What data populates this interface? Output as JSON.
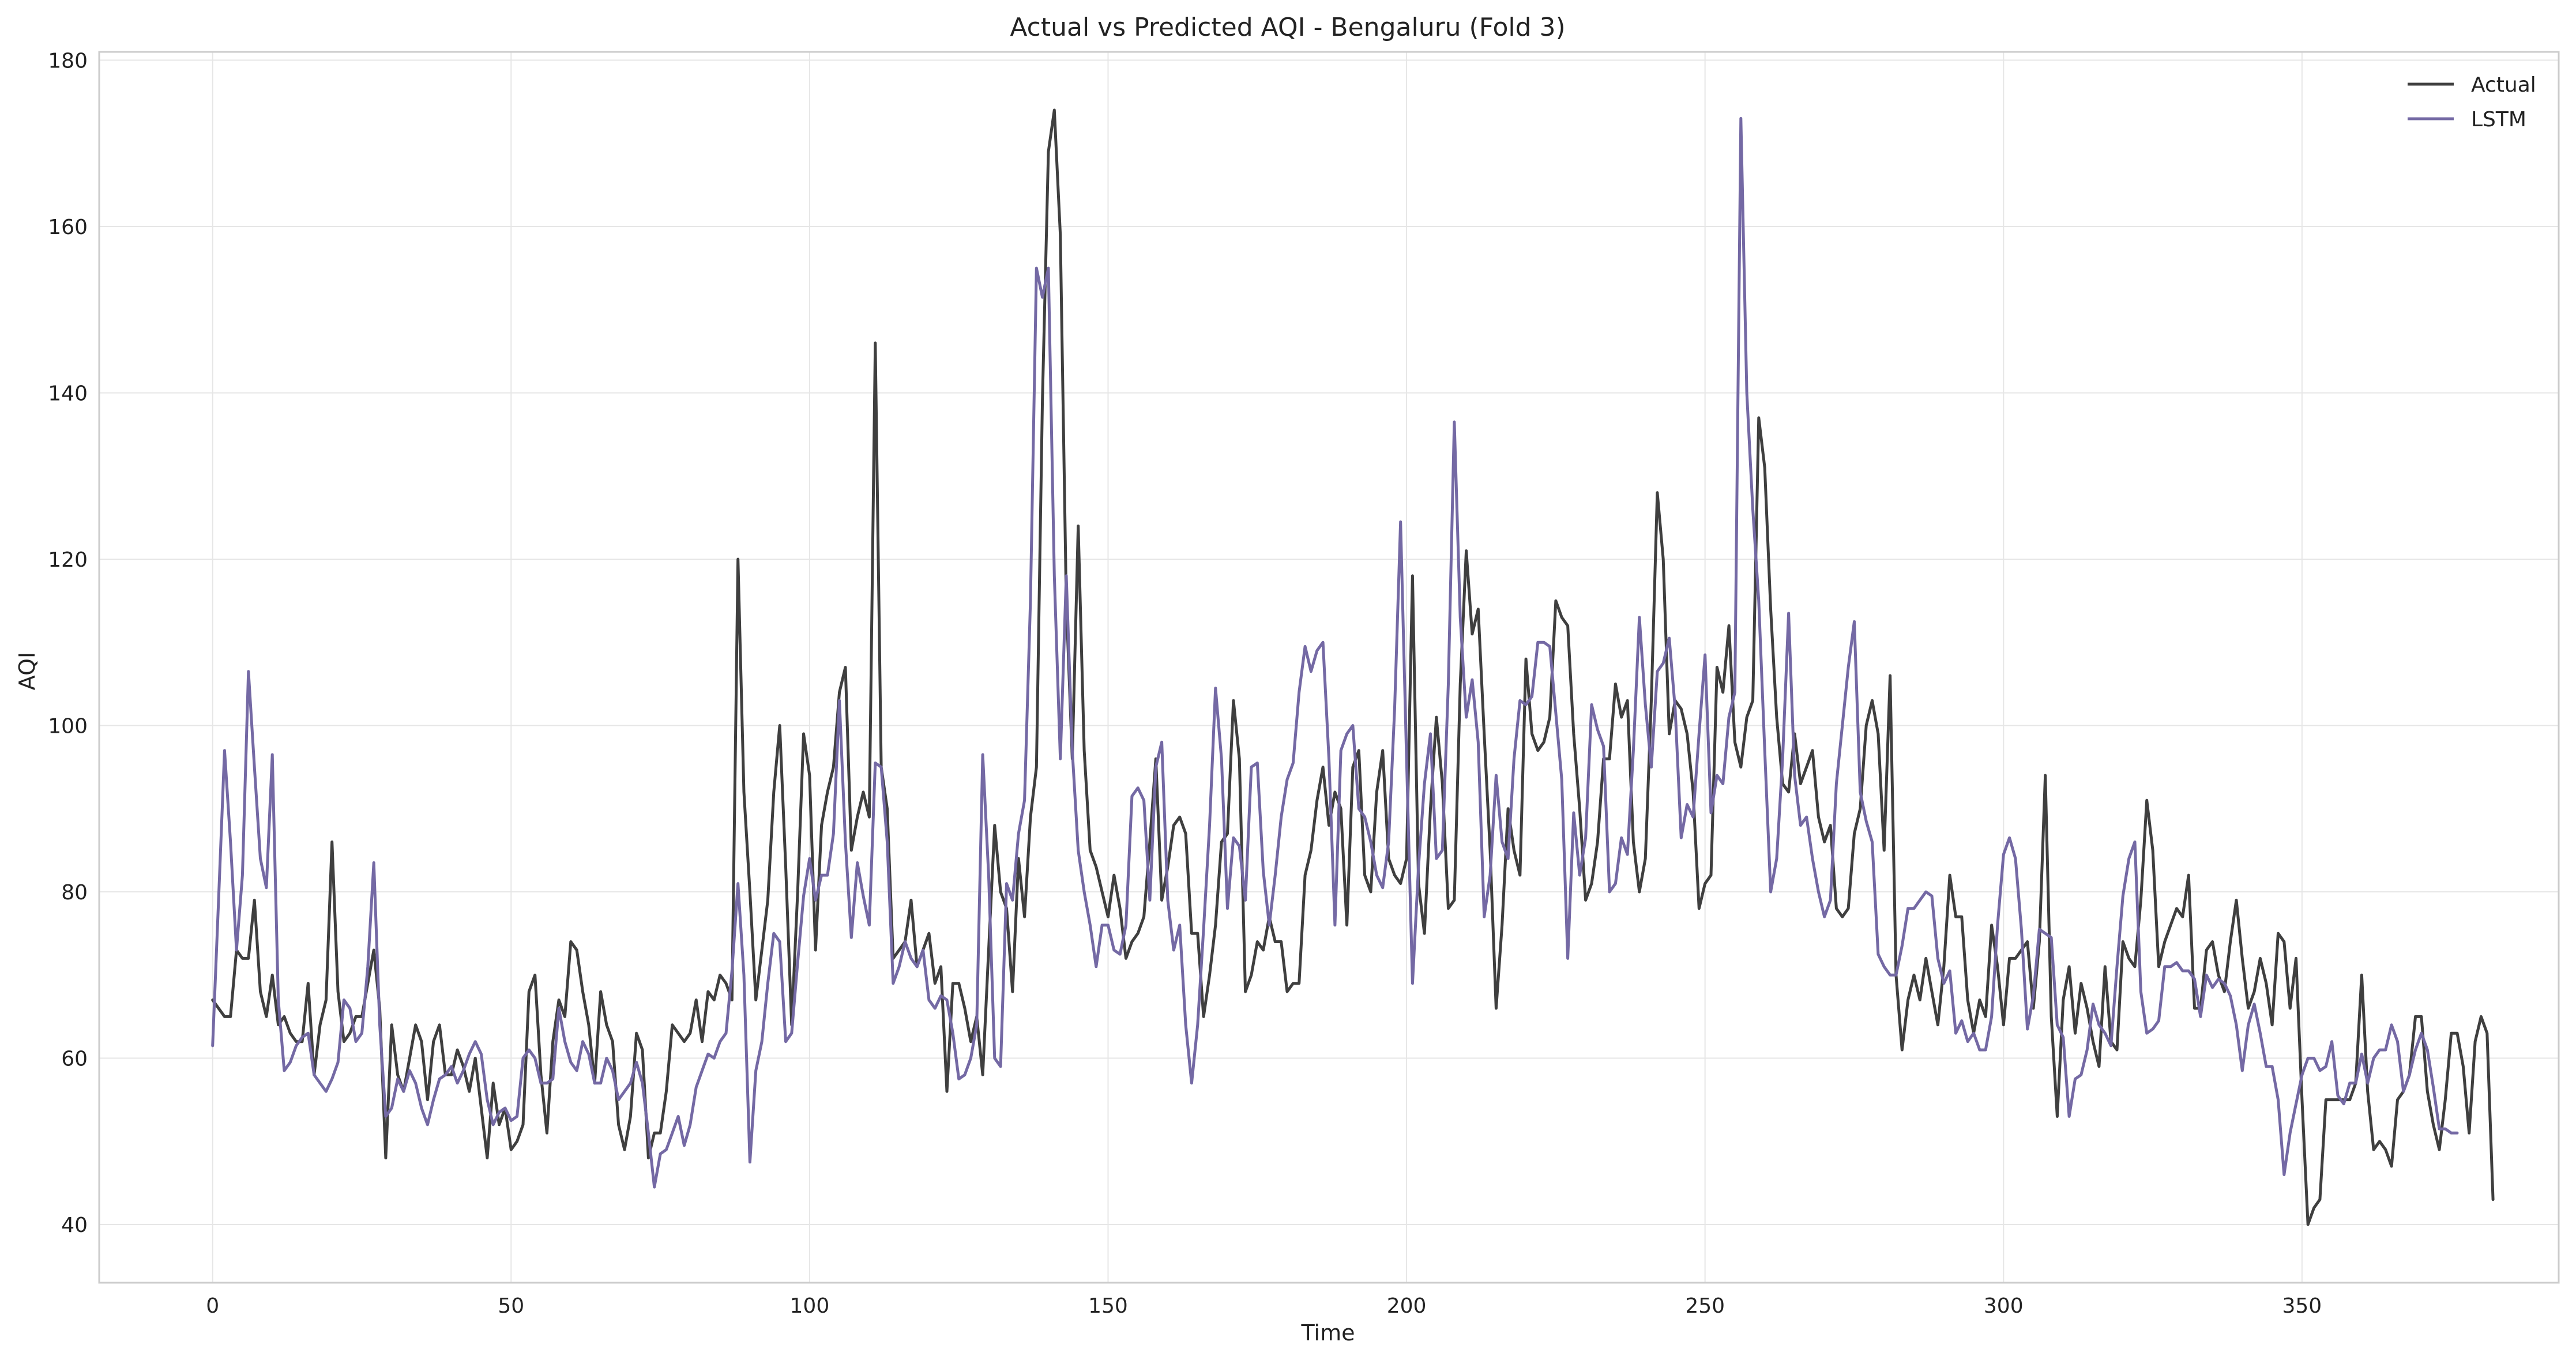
{
  "chart_data": {
    "type": "line",
    "title": "Actual vs Predicted AQI - Bengaluru (Fold 3)",
    "xlabel": "Time",
    "ylabel": "AQI",
    "xlim": [
      -19,
      393
    ],
    "ylim": [
      33,
      181
    ],
    "xticks": [
      0,
      50,
      100,
      150,
      200,
      250,
      300,
      350
    ],
    "yticks": [
      40,
      60,
      80,
      100,
      120,
      140,
      160,
      180
    ],
    "grid": true,
    "legend": "top-right",
    "series": [
      {
        "name": "Actual",
        "color": "#3f3f3f",
        "values": [
          67,
          66,
          65,
          65,
          73,
          72,
          72,
          79,
          68,
          65,
          70,
          64,
          65,
          63,
          62,
          62,
          69,
          58,
          64,
          67,
          86,
          68,
          62,
          63,
          65,
          65,
          69,
          73,
          66,
          48,
          64,
          58,
          56,
          60,
          64,
          62,
          55,
          62,
          64,
          58,
          58,
          61,
          59,
          56,
          60,
          54,
          48,
          57,
          52,
          54,
          49,
          50,
          52,
          68,
          70,
          58,
          51,
          62,
          67,
          65,
          74,
          73,
          68,
          64,
          57,
          68,
          64,
          62,
          52,
          49,
          53,
          63,
          61,
          48,
          51,
          51,
          56,
          64,
          63,
          62,
          63,
          67,
          62,
          68,
          67,
          70,
          69,
          67,
          120,
          92,
          80,
          67,
          73,
          79,
          92,
          100,
          83,
          64,
          80,
          99,
          94,
          73,
          88,
          92,
          95,
          104,
          107,
          85,
          89,
          92,
          89,
          146,
          95,
          90,
          72,
          73,
          74,
          79,
          71,
          73,
          75,
          69,
          71,
          56,
          69,
          69,
          66,
          62,
          65,
          58,
          73,
          88,
          80,
          78,
          68,
          84,
          77,
          89,
          95,
          139,
          169,
          174,
          159,
          115,
          96,
          124,
          97,
          85,
          83,
          80,
          77,
          82,
          78,
          72,
          74,
          75,
          77,
          86,
          96,
          79,
          83,
          88,
          89,
          87,
          75,
          75,
          65,
          70,
          76,
          86,
          87,
          103,
          96,
          68,
          70,
          74,
          73,
          77,
          74,
          74,
          68,
          69,
          69,
          82,
          85,
          91,
          95,
          88,
          92,
          90,
          76,
          95,
          97,
          82,
          80,
          92,
          97,
          84,
          82,
          81,
          84,
          118,
          81,
          75,
          90,
          101,
          93,
          78,
          79,
          105,
          121,
          111,
          114,
          99,
          85,
          66,
          76,
          90,
          85,
          82,
          108,
          99,
          97,
          98,
          101,
          115,
          113,
          112,
          99,
          90,
          79,
          81,
          86,
          96,
          96,
          105,
          101,
          103,
          86,
          80,
          84,
          103,
          128,
          120,
          99,
          103,
          102,
          99,
          92,
          78,
          81,
          82,
          107,
          104,
          112,
          98,
          95,
          101,
          103,
          137,
          131,
          114,
          101,
          93,
          92,
          99,
          93,
          95,
          97,
          89,
          86,
          88,
          78,
          77,
          78,
          87,
          90,
          100,
          103,
          99,
          85,
          106,
          70,
          61,
          67,
          70,
          67,
          72,
          68,
          64,
          71,
          82,
          77,
          77,
          67,
          63,
          67,
          65,
          76,
          71,
          64,
          72,
          72,
          73,
          74,
          66,
          74,
          94,
          65,
          53,
          67,
          71,
          63,
          69,
          66,
          62,
          59,
          71,
          62,
          61,
          74,
          72,
          71,
          79,
          91,
          85,
          71,
          74,
          76,
          78,
          77,
          82,
          66,
          66,
          73,
          74,
          70,
          68,
          74,
          79,
          72,
          66,
          68,
          72,
          69,
          64,
          75,
          74,
          66,
          72,
          55,
          40,
          42,
          43,
          55,
          55,
          55,
          55,
          55,
          57,
          70,
          56,
          49,
          50,
          49,
          47,
          55,
          56,
          58,
          65,
          65,
          56,
          52,
          49,
          55,
          63,
          63,
          59,
          51,
          62,
          65,
          63,
          43
        ]
      },
      {
        "name": "LSTM",
        "color": "#7469a4",
        "values": [
          61.5,
          79,
          97,
          86,
          73,
          82,
          106.5,
          95,
          84,
          80.5,
          96.5,
          67,
          58.5,
          59.5,
          61.5,
          62.5,
          63,
          58,
          57,
          56,
          57.5,
          59.5,
          67,
          66,
          62,
          63,
          71,
          83.5,
          64,
          53,
          54,
          57.5,
          56,
          58.5,
          57,
          54,
          52,
          55,
          57.5,
          58,
          59,
          57,
          58.5,
          60.5,
          62,
          60.5,
          55,
          52,
          53.5,
          54,
          52.5,
          53,
          60,
          61,
          60,
          57,
          57,
          57.5,
          66,
          62,
          59.5,
          58.5,
          62,
          60.5,
          57,
          57,
          60,
          58.5,
          55,
          56,
          57,
          59.5,
          57,
          51,
          44.5,
          48.5,
          49,
          51,
          53,
          49.5,
          52,
          56.5,
          58.5,
          60.5,
          60,
          62,
          63,
          70.5,
          81,
          70,
          47.5,
          58.5,
          62,
          69,
          75,
          74,
          62,
          63,
          71.5,
          79.5,
          84,
          79,
          82,
          82,
          87,
          103,
          86,
          74.5,
          83.5,
          79.5,
          76,
          95.5,
          95,
          86,
          69,
          71,
          74,
          72,
          71,
          73,
          67,
          66,
          67.5,
          67,
          63,
          57.5,
          58,
          60,
          64,
          96.5,
          82,
          60,
          59,
          81,
          79,
          87,
          91,
          115,
          155,
          151.5,
          155,
          118,
          96,
          118,
          97,
          85,
          80,
          76,
          71,
          76,
          76,
          73,
          72.5,
          76,
          91.5,
          92.5,
          91,
          79,
          95,
          98,
          79,
          73,
          76,
          64,
          57,
          64,
          75.5,
          88,
          104.5,
          96,
          78,
          86.5,
          85.5,
          79,
          95,
          95.5,
          82.5,
          76,
          82,
          89,
          93.5,
          95.5,
          104,
          109.5,
          106.5,
          109,
          110,
          96,
          76,
          97,
          99,
          100,
          90,
          89,
          86,
          82,
          80.5,
          86,
          102,
          124.5,
          96,
          69,
          83,
          93,
          99,
          84,
          85,
          105,
          136.5,
          113,
          101,
          105.5,
          98,
          77,
          82,
          94,
          86,
          84,
          96,
          103,
          102.5,
          103.5,
          110,
          110,
          109.5,
          101.5,
          93.5,
          72,
          89.5,
          82,
          86.5,
          102.5,
          99.5,
          97.5,
          80,
          81,
          86.5,
          84.5,
          97,
          113,
          102.5,
          95,
          106.5,
          107.5,
          110.5,
          102,
          86.5,
          90.5,
          89,
          99,
          108.5,
          89.5,
          94,
          93,
          101,
          104,
          173,
          140,
          126,
          115,
          97,
          80,
          84,
          96,
          113.5,
          94,
          88,
          89,
          84,
          80,
          77,
          79,
          93,
          100,
          107,
          112.5,
          92,
          88.5,
          86,
          72.5,
          71,
          70,
          70,
          73.5,
          78,
          78,
          79,
          80,
          79.5,
          72,
          69,
          70.5,
          63,
          64.5,
          62,
          63,
          61,
          61,
          65,
          76,
          84.5,
          86.5,
          84,
          75.5,
          63.5,
          67.5,
          75.5,
          75,
          74.5,
          64,
          62.5,
          53,
          57.5,
          58,
          61,
          66.5,
          64,
          63,
          61.5,
          71,
          79.5,
          84,
          86,
          68,
          63,
          63.5,
          64.5,
          71,
          71,
          71.5,
          70.5,
          70.5,
          69.5,
          65,
          70,
          68.5,
          69.5,
          69,
          67.5,
          64,
          58.5,
          64,
          66.5,
          63,
          59,
          59,
          55,
          46,
          51,
          54.5,
          58,
          60,
          60,
          58.5,
          59,
          62,
          55.5,
          54.5,
          57,
          57,
          60.5,
          57,
          60,
          61,
          61,
          64,
          62,
          56,
          58,
          61,
          63,
          61,
          56.5,
          51.5,
          51.5,
          51,
          51
        ]
      }
    ]
  }
}
